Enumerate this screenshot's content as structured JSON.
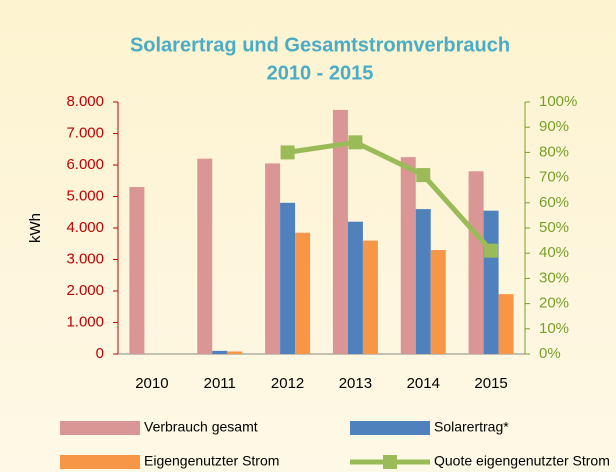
{
  "chart_data": {
    "type": "bar",
    "title": [
      "Solarertrag und Gesamtstromverbrauch",
      "2010 - 2015"
    ],
    "ylabel": "kWh",
    "categories": [
      "2010",
      "2011",
      "2012",
      "2013",
      "2014",
      "2015"
    ],
    "series": [
      {
        "name": "Verbrauch gesamt",
        "color": "#d99694",
        "values": [
          5300,
          6200,
          6050,
          7750,
          6250,
          5800
        ]
      },
      {
        "name": "Solarertrag*",
        "color": "#4f81bd",
        "values": [
          0,
          100,
          4800,
          4200,
          4600,
          4550
        ]
      },
      {
        "name": "Eigengenutzter Strom",
        "color": "#f79646",
        "values": [
          0,
          80,
          3850,
          3600,
          3300,
          1900
        ]
      },
      {
        "name": "Quote eigengenutzter Strom",
        "color": "#9bbb59",
        "type": "line",
        "axis": "y2",
        "values": [
          null,
          null,
          80,
          84,
          71,
          41
        ]
      }
    ],
    "ylim": [
      0,
      8000
    ],
    "yticks": [
      0,
      {
        "value": 1000,
        "label": "1.000"
      },
      {
        "value": 2000,
        "label": "2.000"
      },
      {
        "value": 3000,
        "label": "3.000"
      },
      {
        "value": 4000,
        "label": "4.000"
      },
      {
        "value": 5000,
        "label": "5.000"
      },
      {
        "value": 6000,
        "label": "6.000"
      },
      {
        "value": 7000,
        "label": "7.000"
      },
      {
        "value": 8000,
        "label": "8.000"
      }
    ],
    "y2lim": [
      0,
      100
    ],
    "y2ticks": [
      {
        "value": 0,
        "label": "0%"
      },
      {
        "value": 10,
        "label": "10%"
      },
      {
        "value": 20,
        "label": "20%"
      },
      {
        "value": 30,
        "label": "30%"
      },
      {
        "value": 40,
        "label": "40%"
      },
      {
        "value": 50,
        "label": "50%"
      },
      {
        "value": 60,
        "label": "60%"
      },
      {
        "value": 70,
        "label": "70%"
      },
      {
        "value": 80,
        "label": "80%"
      },
      {
        "value": 90,
        "label": "90%"
      },
      {
        "value": 100,
        "label": "100%"
      }
    ]
  }
}
